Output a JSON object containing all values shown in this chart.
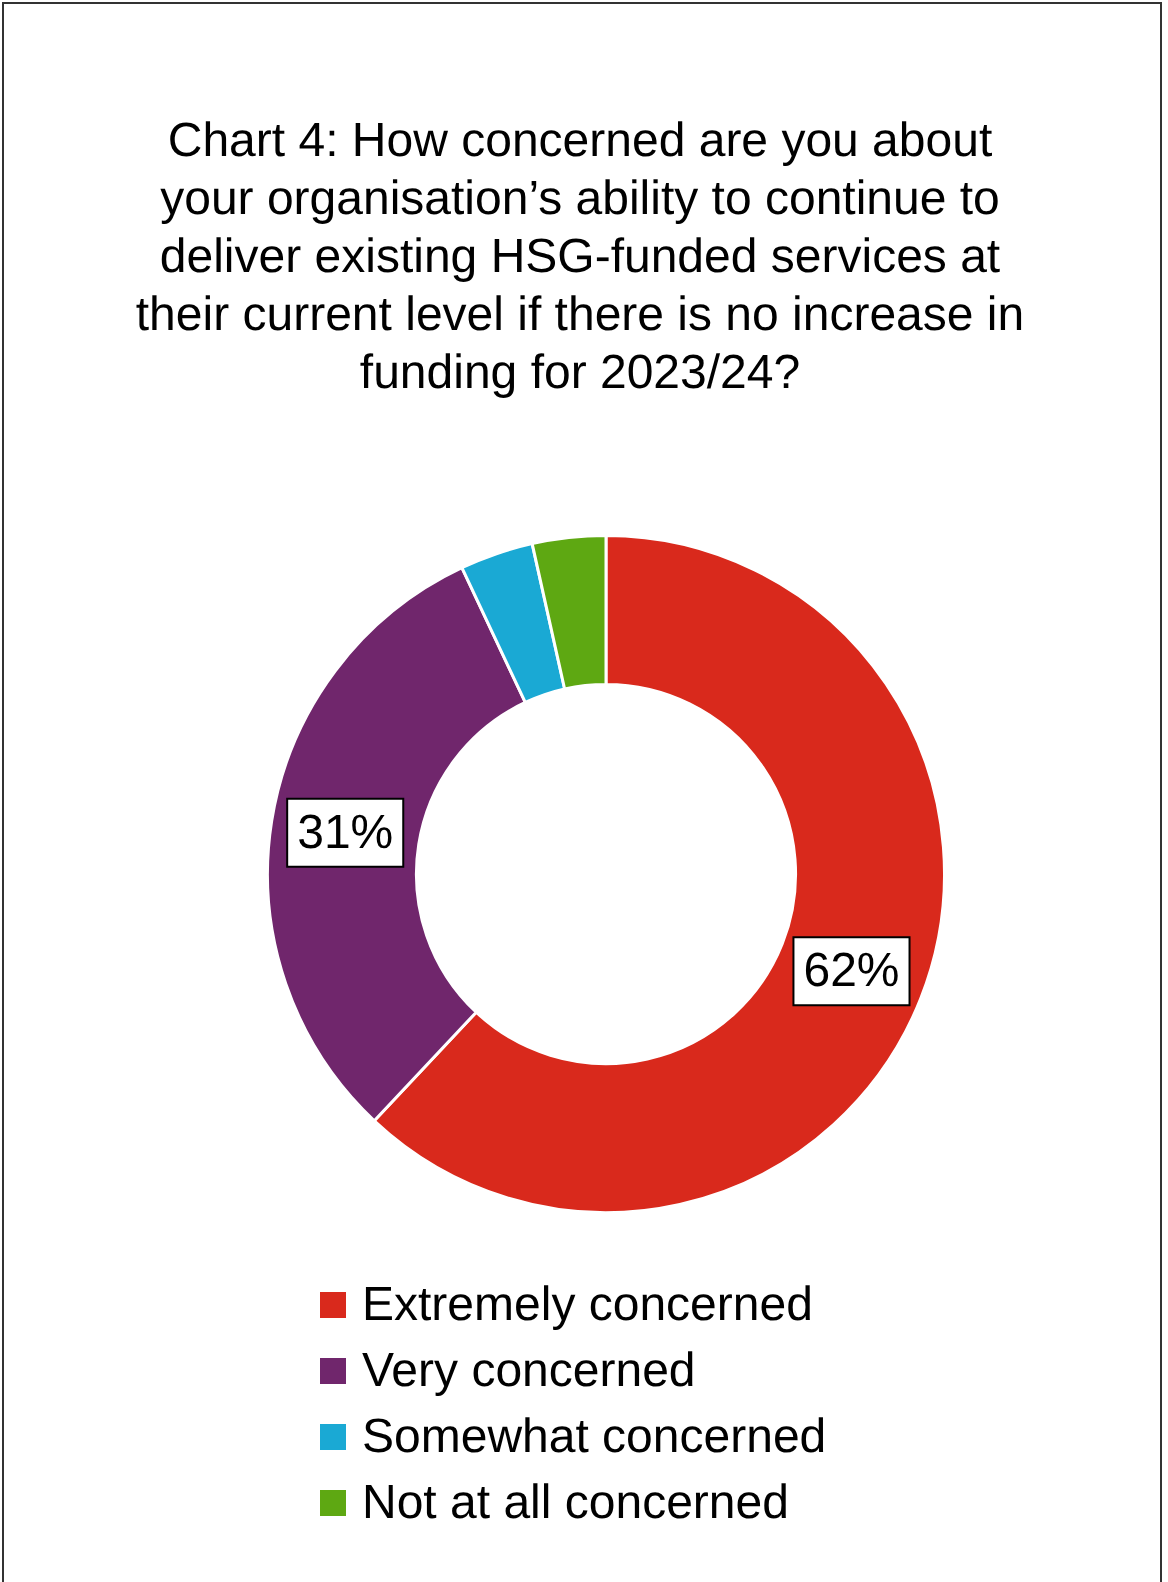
{
  "chart_data": {
    "type": "donut",
    "title": "Chart 4: How concerned are you about your organisation’s ability to continue to deliver existing HSG-funded services at their current level if there is no increase in funding for 2023/24?",
    "categories": [
      "Extremely concerned",
      "Very concerned",
      "Somewhat concerned",
      "Not at all concerned"
    ],
    "values": [
      62,
      31,
      3.5,
      3.5
    ],
    "value_labels": [
      "62%",
      "31%",
      null,
      null
    ],
    "colors": [
      "#d9291c",
      "#70266c",
      "#1aa9d4",
      "#5ea812"
    ],
    "legend": "bottom"
  }
}
